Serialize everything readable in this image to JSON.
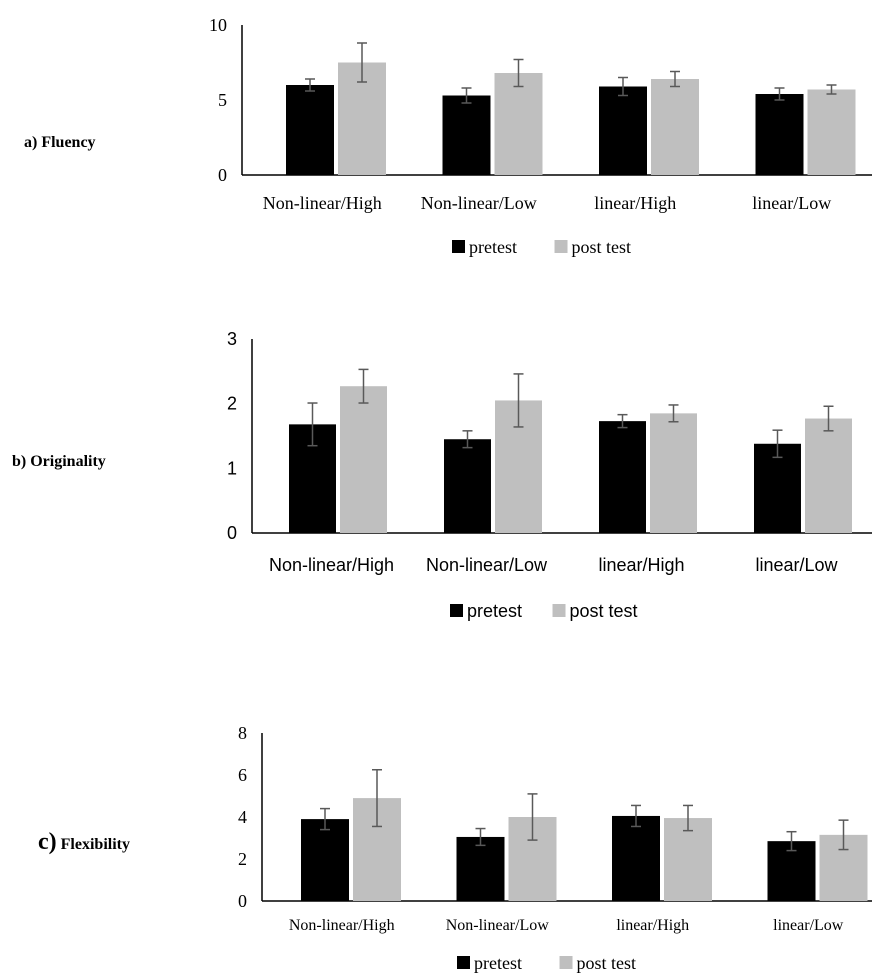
{
  "colors": {
    "pretest": "#000000",
    "post_test": "#bfbfbf",
    "axis": "#000000",
    "error_bar": "#595959"
  },
  "panels": [
    {
      "label_prefix": "a)",
      "label_text": "Fluency"
    },
    {
      "label_prefix": "b)",
      "label_text": "Originality"
    },
    {
      "label_prefix": "c)",
      "label_text": "Flexibility"
    }
  ],
  "chart_data": [
    {
      "type": "bar",
      "title": "",
      "xlabel": "",
      "ylabel": "",
      "categories": [
        "Non-linear/High",
        "Non-linear/Low",
        "linear/High",
        "linear/Low"
      ],
      "ylim": [
        0,
        10
      ],
      "yticks": [
        "0",
        "5",
        "10"
      ],
      "ytick_values": [
        0,
        5,
        10
      ],
      "grid": false,
      "legend_position": "bottom",
      "series": [
        {
          "name": "pretest",
          "values": [
            6.0,
            5.3,
            5.9,
            5.4
          ],
          "errors": [
            0.4,
            0.5,
            0.6,
            0.4
          ]
        },
        {
          "name": "post test",
          "values": [
            7.5,
            6.8,
            6.4,
            5.7
          ],
          "errors": [
            1.3,
            0.9,
            0.5,
            0.3
          ]
        }
      ]
    },
    {
      "type": "bar",
      "title": "",
      "xlabel": "",
      "ylabel": "",
      "categories": [
        "Non-linear/High",
        "Non-linear/Low",
        "linear/High",
        "linear/Low"
      ],
      "ylim": [
        0,
        3
      ],
      "yticks": [
        "0",
        "1",
        "2",
        "3"
      ],
      "ytick_values": [
        0,
        1,
        2,
        3
      ],
      "grid": false,
      "legend_position": "bottom",
      "series": [
        {
          "name": "pretest",
          "values": [
            1.68,
            1.45,
            1.73,
            1.38
          ],
          "errors": [
            0.33,
            0.13,
            0.1,
            0.21
          ]
        },
        {
          "name": "post test",
          "values": [
            2.27,
            2.05,
            1.85,
            1.77
          ],
          "errors": [
            0.26,
            0.41,
            0.13,
            0.19
          ]
        }
      ]
    },
    {
      "type": "bar",
      "title": "",
      "xlabel": "",
      "ylabel": "",
      "categories": [
        "Non-linear/High",
        "Non-linear/Low",
        "linear/High",
        "linear/Low"
      ],
      "ylim": [
        0,
        8
      ],
      "yticks": [
        "0",
        "2",
        "4",
        "6",
        "8"
      ],
      "ytick_values": [
        0,
        2,
        4,
        6,
        8
      ],
      "grid": false,
      "legend_position": "bottom",
      "series": [
        {
          "name": "pretest",
          "values": [
            3.9,
            3.05,
            4.05,
            2.85
          ],
          "errors": [
            0.5,
            0.4,
            0.5,
            0.45
          ]
        },
        {
          "name": "post test",
          "values": [
            4.9,
            4.0,
            3.95,
            3.15
          ],
          "errors": [
            1.35,
            1.1,
            0.6,
            0.7
          ]
        }
      ]
    }
  ]
}
